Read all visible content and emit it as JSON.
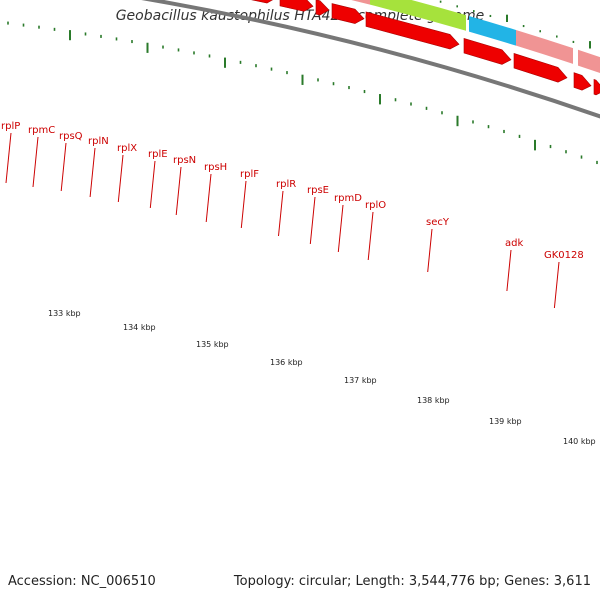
{
  "title": "Geobacillus kaustophilus HTA426, complete genome",
  "footer": {
    "accession": "Accession: NC_006510",
    "summary": "Topology: circular; Length: 3,544,776 bp; Genes: 3,611"
  },
  "colors": {
    "gene_label": "#cc0000",
    "gene_track": "#f09494",
    "cds_arrow": "#ee0000",
    "secY": "#a6e23c",
    "adk": "#22b4e6",
    "tick": "#2a7a2a",
    "backbone": "#777777"
  },
  "gene_labels": [
    "rplP",
    "rpmC",
    "rpsQ",
    "rplN",
    "rplX",
    "rplE",
    "rpsN",
    "rpsH",
    "rplF",
    "rplR",
    "rpsE",
    "rpmD",
    "rplO",
    "secY",
    "adk",
    "GK0128"
  ],
  "kbp_labels": [
    "133 kbp",
    "134 kbp",
    "135 kbp",
    "136 kbp",
    "137 kbp",
    "138 kbp",
    "139 kbp",
    "140 kbp"
  ]
}
